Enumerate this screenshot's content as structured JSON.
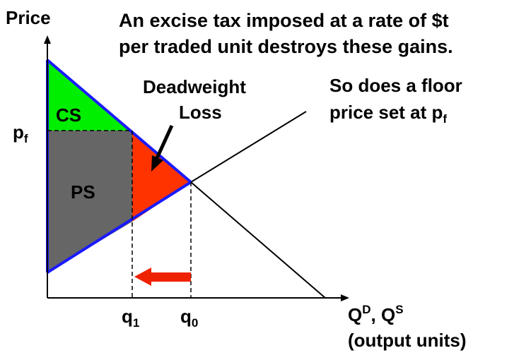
{
  "axes": {
    "y_label": "Price",
    "x_label_main": "Q",
    "x_label_d": "D",
    "x_label_sep": ", Q",
    "x_label_s": "S",
    "x_label_units": "(output units)"
  },
  "headline": {
    "line1": "An excise tax imposed at a rate of $t",
    "line2": "per traded unit destroys these gains."
  },
  "floor_note": {
    "line1": "So does a floor",
    "line2_main": "price set at p",
    "line2_sub": "f"
  },
  "deadweight": {
    "line1": "Deadweight",
    "line2": "Loss"
  },
  "regions": {
    "cs": "CS",
    "ps": "PS"
  },
  "price_label": {
    "main": "p",
    "sub": "f"
  },
  "quantity_labels": [
    {
      "main": "q",
      "sub": "1"
    },
    {
      "main": "q",
      "sub": "0"
    }
  ],
  "colors": {
    "consumer_surplus": "#00ee00",
    "producer_surplus": "#666666",
    "deadweight_loss": "#ff3300",
    "boundary": "#1a1aff",
    "arrow": "#ee2200"
  }
}
